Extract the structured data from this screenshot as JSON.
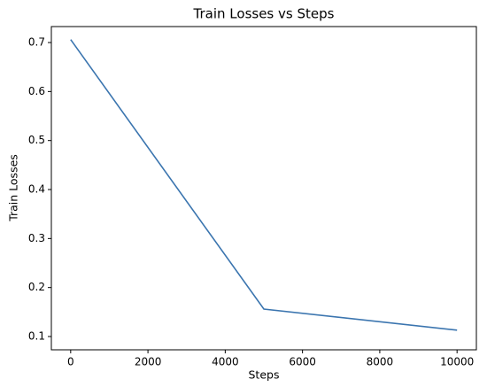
{
  "chart_data": {
    "type": "line",
    "title": "Train Losses vs Steps",
    "x_label": "Steps",
    "y_label": "Train Losses",
    "x": [
      0,
      5000,
      10000
    ],
    "series": [
      {
        "name": "Train Losses",
        "color": "#3b75af",
        "values": [
          0.706,
          0.156,
          0.113
        ]
      }
    ],
    "xlim": [
      -500,
      10500
    ],
    "xticks": [
      0,
      2000,
      4000,
      6000,
      8000,
      10000
    ],
    "ylim": [
      0.0729,
      0.7326
    ],
    "yticks": [
      0.1,
      0.2,
      0.3,
      0.4,
      0.5,
      0.6,
      0.7
    ],
    "grid": false
  }
}
